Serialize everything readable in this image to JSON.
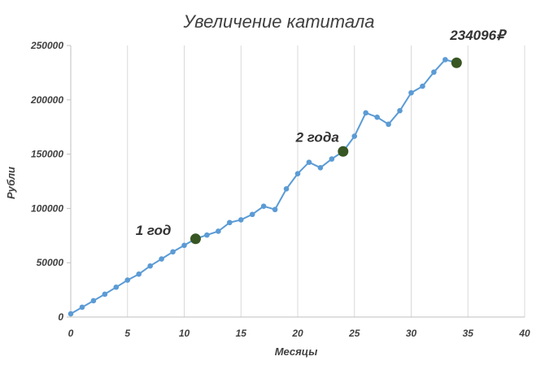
{
  "chart_data": {
    "type": "line",
    "title": "Увеличение катитала",
    "xlabel": "Месяцы",
    "ylabel": "Рубли",
    "xlim": [
      0,
      40
    ],
    "ylim": [
      0,
      250000
    ],
    "x_ticks": [
      0,
      5,
      10,
      15,
      20,
      25,
      30,
      35,
      40
    ],
    "y_ticks": [
      0,
      50000,
      100000,
      150000,
      200000,
      250000
    ],
    "x_tick_labels": [
      "0",
      "5",
      "10",
      "15",
      "20",
      "25",
      "30",
      "35",
      "40"
    ],
    "y_tick_labels": [
      "0",
      "50000",
      "100000",
      "150000",
      "200000",
      "250000"
    ],
    "grid": "vertical",
    "legend": "none",
    "colors": {
      "line": "#5b9bd5",
      "highlight": "#375623"
    },
    "series": [
      {
        "x": [
          0,
          1,
          2,
          3,
          4,
          5,
          6,
          7,
          8,
          9,
          10,
          11,
          12,
          13,
          14,
          15,
          16,
          17,
          18,
          19,
          20,
          21,
          22,
          23,
          24,
          25,
          26,
          27,
          28,
          29,
          30,
          31,
          32,
          33,
          34
        ],
        "values": [
          3000,
          9000,
          15000,
          21000,
          27500,
          34000,
          39500,
          47000,
          53500,
          60000,
          66000,
          72000,
          75500,
          79000,
          87000,
          89500,
          94500,
          102000,
          99000,
          118000,
          132000,
          142500,
          137500,
          145500,
          152500,
          166500,
          188000,
          184000,
          177500,
          190000,
          206500,
          212500,
          225500,
          237000,
          234096
        ]
      }
    ],
    "highlights": [
      {
        "x": 11,
        "y": 72000,
        "label": "1 год"
      },
      {
        "x": 24,
        "y": 152500,
        "label": "2 года"
      },
      {
        "x": 34,
        "y": 234096,
        "label": "234096₽"
      }
    ]
  }
}
